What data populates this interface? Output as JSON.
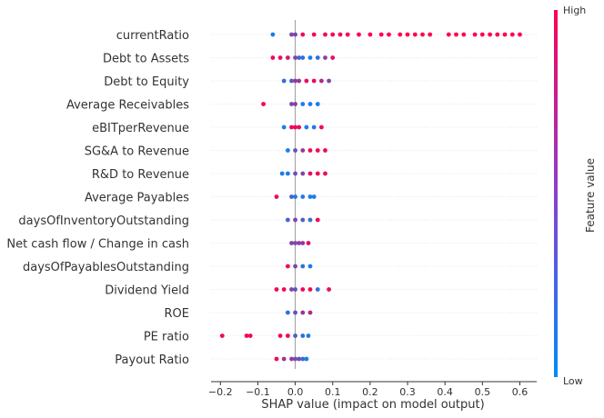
{
  "chart_data": {
    "type": "scatter",
    "subtype": "shap-beeswarm",
    "xlabel": "SHAP value (impact on model output)",
    "x_ticks": [
      "−0.2",
      "−0.1",
      "0.0",
      "0.1",
      "0.2",
      "0.3",
      "0.4",
      "0.5",
      "0.6"
    ],
    "x_tick_values": [
      -0.2,
      -0.1,
      0.0,
      0.1,
      0.2,
      0.3,
      0.4,
      0.5,
      0.6
    ],
    "xlim": [
      -0.225,
      0.645
    ],
    "features": [
      {
        "name": "currentRatio",
        "points": [
          [
            -0.01,
            0.5
          ],
          [
            0.0,
            0.45
          ],
          [
            0.02,
            0.95
          ],
          [
            0.05,
            0.95
          ],
          [
            0.08,
            0.95
          ],
          [
            0.1,
            0.97
          ],
          [
            0.12,
            0.98
          ],
          [
            0.14,
            0.98
          ],
          [
            0.17,
            1.0
          ],
          [
            0.2,
            1.0
          ],
          [
            0.23,
            1.0
          ],
          [
            0.25,
            1.0
          ],
          [
            0.28,
            1.0
          ],
          [
            0.3,
            1.0
          ],
          [
            0.32,
            1.0
          ],
          [
            0.34,
            1.0
          ],
          [
            0.36,
            1.0
          ],
          [
            0.41,
            1.0
          ],
          [
            0.43,
            1.0
          ],
          [
            0.45,
            1.0
          ],
          [
            0.48,
            1.0
          ],
          [
            0.5,
            1.0
          ],
          [
            0.52,
            1.0
          ],
          [
            0.54,
            1.0
          ],
          [
            0.56,
            1.0
          ],
          [
            0.58,
            1.0
          ],
          [
            0.6,
            1.0
          ],
          [
            -0.06,
            0.1
          ]
        ]
      },
      {
        "name": "Debt to Assets",
        "points": [
          [
            -0.06,
            0.95
          ],
          [
            -0.04,
            0.9
          ],
          [
            -0.02,
            0.85
          ],
          [
            0.0,
            0.5
          ],
          [
            0.01,
            0.3
          ],
          [
            0.02,
            0.2
          ],
          [
            0.04,
            0.1
          ],
          [
            0.06,
            0.2
          ],
          [
            0.08,
            0.5
          ],
          [
            0.1,
            0.9
          ]
        ]
      },
      {
        "name": "Debt to Equity",
        "points": [
          [
            -0.03,
            0.2
          ],
          [
            -0.01,
            0.3
          ],
          [
            0.0,
            0.6
          ],
          [
            0.01,
            0.6
          ],
          [
            0.03,
            0.9
          ],
          [
            0.05,
            0.9
          ],
          [
            0.07,
            0.7
          ],
          [
            0.09,
            0.5
          ]
        ]
      },
      {
        "name": "Average Receivables",
        "points": [
          [
            -0.085,
            0.95
          ],
          [
            -0.01,
            0.5
          ],
          [
            0.0,
            0.5
          ],
          [
            0.02,
            0.1
          ],
          [
            0.04,
            0.1
          ],
          [
            0.06,
            0.1
          ]
        ]
      },
      {
        "name": "eBITperRevenue",
        "points": [
          [
            -0.03,
            0.1
          ],
          [
            -0.01,
            0.95
          ],
          [
            0.0,
            0.95
          ],
          [
            0.01,
            0.9
          ],
          [
            0.03,
            0.1
          ],
          [
            0.05,
            0.1
          ],
          [
            0.07,
            0.95
          ]
        ]
      },
      {
        "name": "SG&A to Revenue",
        "points": [
          [
            -0.02,
            0.1
          ],
          [
            0.0,
            0.4
          ],
          [
            0.02,
            0.6
          ],
          [
            0.04,
            0.95
          ],
          [
            0.06,
            0.95
          ],
          [
            0.08,
            0.95
          ]
        ]
      },
      {
        "name": "R&D to Revenue",
        "points": [
          [
            -0.035,
            0.1
          ],
          [
            -0.02,
            0.1
          ],
          [
            0.0,
            0.4
          ],
          [
            0.02,
            0.5
          ],
          [
            0.04,
            0.9
          ],
          [
            0.06,
            0.95
          ],
          [
            0.08,
            0.95
          ]
        ]
      },
      {
        "name": "Average Payables",
        "points": [
          [
            -0.05,
            0.95
          ],
          [
            -0.01,
            0.3
          ],
          [
            0.0,
            0.1
          ],
          [
            0.02,
            0.1
          ],
          [
            0.04,
            0.1
          ],
          [
            0.05,
            0.1
          ]
        ]
      },
      {
        "name": "daysOfInventoryOutstanding",
        "points": [
          [
            -0.02,
            0.3
          ],
          [
            0.0,
            0.5
          ],
          [
            0.02,
            0.3
          ],
          [
            0.04,
            0.2
          ],
          [
            0.06,
            0.95
          ]
        ]
      },
      {
        "name": "Net cash flow / Change in cash",
        "points": [
          [
            -0.01,
            0.5
          ],
          [
            0.0,
            0.5
          ],
          [
            0.01,
            0.5
          ],
          [
            0.02,
            0.6
          ],
          [
            0.035,
            0.9
          ]
        ]
      },
      {
        "name": "daysOfPayablesOutstanding",
        "points": [
          [
            -0.02,
            0.95
          ],
          [
            0.0,
            0.5
          ],
          [
            0.02,
            0.2
          ],
          [
            0.04,
            0.1
          ]
        ]
      },
      {
        "name": "Dividend Yield",
        "points": [
          [
            -0.05,
            0.95
          ],
          [
            -0.03,
            0.95
          ],
          [
            -0.01,
            0.5
          ],
          [
            0.0,
            0.4
          ],
          [
            0.02,
            0.95
          ],
          [
            0.04,
            0.95
          ],
          [
            0.06,
            0.2
          ],
          [
            0.09,
            0.9
          ]
        ]
      },
      {
        "name": "ROE",
        "points": [
          [
            -0.02,
            0.2
          ],
          [
            0.0,
            0.4
          ],
          [
            0.02,
            0.6
          ],
          [
            0.04,
            0.7
          ]
        ]
      },
      {
        "name": "PE ratio",
        "points": [
          [
            -0.195,
            0.95
          ],
          [
            -0.13,
            0.95
          ],
          [
            -0.12,
            0.95
          ],
          [
            -0.04,
            0.95
          ],
          [
            -0.02,
            0.95
          ],
          [
            0.0,
            0.3
          ],
          [
            0.02,
            0.2
          ],
          [
            0.035,
            0.1
          ]
        ]
      },
      {
        "name": "Payout Ratio",
        "points": [
          [
            -0.05,
            0.95
          ],
          [
            -0.03,
            0.6
          ],
          [
            -0.01,
            0.6
          ],
          [
            0.0,
            0.4
          ],
          [
            0.01,
            0.5
          ],
          [
            0.02,
            0.2
          ],
          [
            0.03,
            0.1
          ]
        ]
      }
    ],
    "colorbar": {
      "title": "Feature value",
      "high_label": "High",
      "low_label": "Low",
      "low_color": "#008bfb",
      "high_color": "#ff0052"
    }
  }
}
